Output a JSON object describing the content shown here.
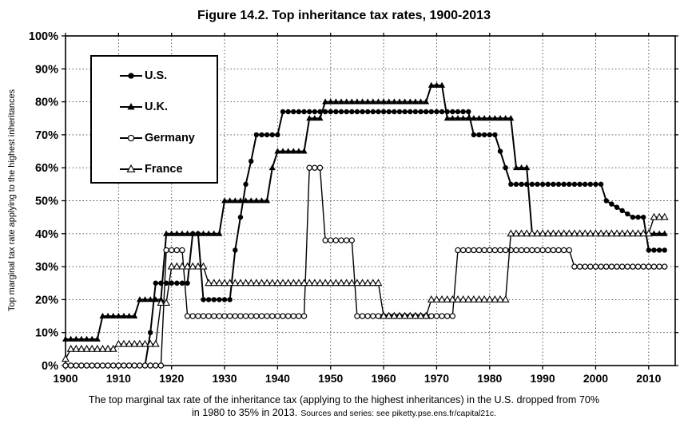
{
  "figure": {
    "title": "Figure 14.2. Top inheritance tax rates, 1900-2013",
    "y_axis_label": "Top marginal tax rate applying to the highest inheritances",
    "caption": {
      "line1": "The top marginal tax rate of the inheritance tax (applying to the highest inheritances) in the U.S. dropped from 70%",
      "line2": "in 1980 to 35% in 2013.",
      "source": "Sources and series: see piketty.pse.ens.fr/capital21c."
    }
  },
  "legend": {
    "items": [
      {
        "id": "us",
        "label": "U.S.",
        "marker": "filled-circle"
      },
      {
        "id": "uk",
        "label": "U.K.",
        "marker": "filled-triangle"
      },
      {
        "id": "germany",
        "label": "Germany",
        "marker": "open-circle"
      },
      {
        "id": "france",
        "label": "France",
        "marker": "open-triangle"
      }
    ]
  },
  "colors": {
    "foreground": "#000000",
    "background": "#ffffff",
    "gridline": "#444444"
  },
  "chart_data": {
    "type": "line",
    "title": "Figure 14.2. Top inheritance tax rates, 1900-2013",
    "xlabel": "",
    "ylabel": "Top marginal tax rate applying to the highest inheritances",
    "xlim": [
      1900,
      2015
    ],
    "ylim": [
      0,
      100
    ],
    "x_ticks": [
      1900,
      1910,
      1920,
      1930,
      1940,
      1950,
      1960,
      1970,
      1980,
      1990,
      2000,
      2010
    ],
    "y_ticks": [
      0,
      10,
      20,
      30,
      40,
      50,
      60,
      70,
      80,
      90,
      100
    ],
    "y_tick_suffix": "%",
    "grid": "dashed gridlines every 10 years and every 10%",
    "legend_position": "upper-left-inside",
    "markers_every_years": 1,
    "step_format": [
      "start_year",
      "end_year",
      "top_rate_percent"
    ],
    "series": [
      {
        "id": "us",
        "name": "U.S.",
        "marker": "filled-circle",
        "color": "#000000",
        "skip_zero_markers": true,
        "steps": [
          [
            1900,
            1915,
            0
          ],
          [
            1916,
            1916,
            10
          ],
          [
            1917,
            1923,
            25
          ],
          [
            1924,
            1925,
            40
          ],
          [
            1926,
            1931,
            20
          ],
          [
            1932,
            1932,
            35
          ],
          [
            1933,
            1933,
            45
          ],
          [
            1934,
            1934,
            55
          ],
          [
            1935,
            1935,
            62
          ],
          [
            1936,
            1940,
            70
          ],
          [
            1941,
            1976,
            77
          ],
          [
            1977,
            1981,
            70
          ],
          [
            1982,
            1982,
            65
          ],
          [
            1983,
            1983,
            60
          ],
          [
            1984,
            2001,
            55
          ],
          [
            2002,
            2002,
            50
          ],
          [
            2003,
            2003,
            49
          ],
          [
            2004,
            2004,
            48
          ],
          [
            2005,
            2005,
            47
          ],
          [
            2006,
            2006,
            46
          ],
          [
            2007,
            2009,
            45
          ],
          [
            2010,
            2013,
            35
          ]
        ]
      },
      {
        "id": "uk",
        "name": "U.K.",
        "marker": "filled-triangle",
        "color": "#000000",
        "skip_zero_markers": false,
        "steps": [
          [
            1900,
            1906,
            8
          ],
          [
            1907,
            1913,
            15
          ],
          [
            1914,
            1918,
            20
          ],
          [
            1919,
            1929,
            40
          ],
          [
            1930,
            1938,
            50
          ],
          [
            1939,
            1939,
            60
          ],
          [
            1940,
            1945,
            65
          ],
          [
            1946,
            1948,
            75
          ],
          [
            1949,
            1968,
            80
          ],
          [
            1969,
            1971,
            85
          ],
          [
            1972,
            1984,
            75
          ],
          [
            1985,
            1987,
            60
          ],
          [
            1988,
            2013,
            40
          ]
        ]
      },
      {
        "id": "germany",
        "name": "Germany",
        "marker": "open-circle",
        "color": "#000000",
        "skip_zero_markers": false,
        "steps": [
          [
            1900,
            1918,
            0
          ],
          [
            1919,
            1922,
            35
          ],
          [
            1923,
            1945,
            15
          ],
          [
            1946,
            1948,
            60
          ],
          [
            1949,
            1954,
            38
          ],
          [
            1955,
            1973,
            15
          ],
          [
            1974,
            1995,
            35
          ],
          [
            1996,
            2013,
            30
          ]
        ]
      },
      {
        "id": "france",
        "name": "France",
        "marker": "open-triangle",
        "color": "#000000",
        "skip_zero_markers": false,
        "steps": [
          [
            1900,
            1900,
            2
          ],
          [
            1901,
            1909,
            5
          ],
          [
            1910,
            1917,
            6.5
          ],
          [
            1918,
            1919,
            19
          ],
          [
            1920,
            1926,
            30
          ],
          [
            1927,
            1959,
            25
          ],
          [
            1960,
            1968,
            15
          ],
          [
            1969,
            1983,
            20
          ],
          [
            1984,
            2010,
            40
          ],
          [
            2011,
            2013,
            45
          ]
        ]
      }
    ]
  }
}
